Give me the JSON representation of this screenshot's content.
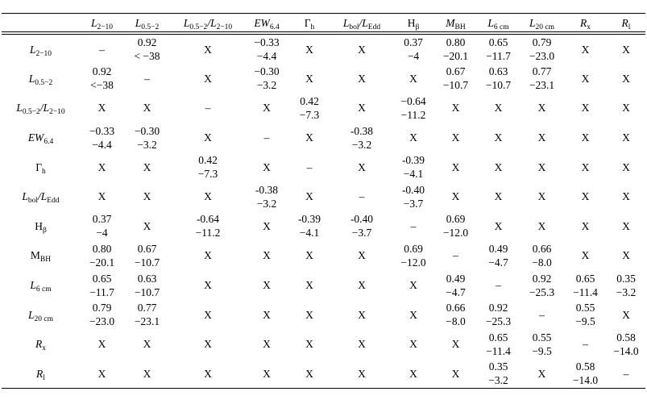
{
  "columns": [
    {
      "id": "l2_10",
      "label": "L",
      "sub": "2−10",
      "italic": true
    },
    {
      "id": "l05_2",
      "label": "L",
      "sub": "0.5−2",
      "italic": true
    },
    {
      "id": "ratio",
      "label": "L",
      "sub": "0.5−2",
      "label2": "/L",
      "sub2": "2−10",
      "italic": true
    },
    {
      "id": "ew",
      "label": "EW",
      "sub": "6.4",
      "italic": true
    },
    {
      "id": "gamma",
      "label": "Γ",
      "sub": "h",
      "italic": false
    },
    {
      "id": "lbol",
      "label": "L",
      "sub": "bol",
      "label2": "/L",
      "sub2": "Edd",
      "italic": true
    },
    {
      "id": "hbeta",
      "label": "H",
      "sub": "β",
      "italic": false
    },
    {
      "id": "mbh",
      "label": "M",
      "sub": "BH",
      "italic": true
    },
    {
      "id": "l6",
      "label": "L",
      "sub": "6 cm",
      "italic": true
    },
    {
      "id": "l20",
      "label": "L",
      "sub": "20 cm",
      "italic": true
    },
    {
      "id": "rx",
      "label": "R",
      "sub": "x",
      "italic": true
    },
    {
      "id": "rl",
      "label": "R",
      "sub": "l",
      "italic": true
    }
  ],
  "rows": [
    {
      "label": "L",
      "sub": "2−10",
      "italic": true,
      "cells": [
        [
          "–"
        ],
        [
          "0.92",
          "< −38"
        ],
        [
          "X"
        ],
        [
          "−0.33",
          "−4.4"
        ],
        [
          "X"
        ],
        [
          "X"
        ],
        [
          "0.37",
          "−4"
        ],
        [
          "0.80",
          "−20.1"
        ],
        [
          "0.65",
          "−11.7"
        ],
        [
          "0.79",
          "−23.0"
        ],
        [
          "X"
        ],
        [
          "X"
        ]
      ]
    },
    {
      "label": "L",
      "sub": "0.5−2",
      "italic": true,
      "cells": [
        [
          "0.92",
          "<−38"
        ],
        [
          "–"
        ],
        [
          "X"
        ],
        [
          "−0.30",
          "−3.2"
        ],
        [
          "X"
        ],
        [
          "X"
        ],
        [
          "X"
        ],
        [
          "0.67",
          "−10.7"
        ],
        [
          "0.63",
          "−10.7"
        ],
        [
          "0.77",
          "−23.1"
        ],
        [
          "X"
        ],
        [
          "X"
        ]
      ]
    },
    {
      "label": "L",
      "sub": "0.5−2",
      "label2": "/L",
      "sub2": "2−10",
      "italic": true,
      "cells": [
        [
          "X"
        ],
        [
          "X"
        ],
        [
          "–"
        ],
        [
          "X"
        ],
        [
          "0.42",
          "−7.3"
        ],
        [
          "X"
        ],
        [
          "−0.64",
          "−11.2"
        ],
        [
          "X"
        ],
        [
          "X"
        ],
        [
          "X"
        ],
        [
          "X"
        ],
        [
          "X"
        ]
      ]
    },
    {
      "label": "EW",
      "sub": "6.4",
      "italic": true,
      "cells": [
        [
          "−0.33",
          "−4.4"
        ],
        [
          "−0.30",
          "−3.2"
        ],
        [
          "X"
        ],
        [
          "–"
        ],
        [
          "X"
        ],
        [
          "-0.38",
          "−3.2"
        ],
        [
          "X"
        ],
        [
          "X"
        ],
        [
          "X"
        ],
        [
          "X"
        ],
        [
          "X"
        ],
        [
          "X"
        ]
      ]
    },
    {
      "label": "Γ",
      "sub": "h",
      "italic": false,
      "cells": [
        [
          "X"
        ],
        [
          "X"
        ],
        [
          "0.42",
          "−7.3"
        ],
        [
          "X"
        ],
        [
          "–"
        ],
        [
          "X"
        ],
        [
          "-0.39",
          "−4.1"
        ],
        [
          "X"
        ],
        [
          "X"
        ],
        [
          "X"
        ],
        [
          "X"
        ],
        [
          "X"
        ]
      ]
    },
    {
      "label": "L",
      "sub": "bol",
      "label2": "/L",
      "sub2": "Edd",
      "italic": true,
      "cells": [
        [
          "X"
        ],
        [
          "X"
        ],
        [
          "X"
        ],
        [
          "-0.38",
          "−3.2"
        ],
        [
          "X"
        ],
        [
          "–"
        ],
        [
          "-0.40",
          "−3.7"
        ],
        [
          "X"
        ],
        [
          "X"
        ],
        [
          "X"
        ],
        [
          "X"
        ],
        [
          "X"
        ]
      ]
    },
    {
      "label": "H",
      "sub": "β",
      "italic": false,
      "cells": [
        [
          "0.37",
          "−4"
        ],
        [
          "X"
        ],
        [
          "-0.64",
          "−11.2"
        ],
        [
          "X"
        ],
        [
          "-0.39",
          "−4.1"
        ],
        [
          "-0.40",
          "−3.7"
        ],
        [
          "–"
        ],
        [
          "0.69",
          "−12.0"
        ],
        [
          "X"
        ],
        [
          "X"
        ],
        [
          "X"
        ],
        [
          "X"
        ]
      ]
    },
    {
      "label": "M",
      "sub": "BH",
      "italic": false,
      "cells": [
        [
          "0.80",
          "−20.1"
        ],
        [
          "0.67",
          "−10.7"
        ],
        [
          "X"
        ],
        [
          "X"
        ],
        [
          "X"
        ],
        [
          "X"
        ],
        [
          "0.69",
          "−12.0"
        ],
        [
          "–"
        ],
        [
          "0.49",
          "−4.7"
        ],
        [
          "0.66",
          "−8.0"
        ],
        [
          "X"
        ],
        [
          "X"
        ]
      ]
    },
    {
      "label": "L",
      "sub": "6 cm",
      "italic": true,
      "cells": [
        [
          "0.65",
          "−11.7"
        ],
        [
          "0.63",
          "−10.7"
        ],
        [
          "X"
        ],
        [
          "X"
        ],
        [
          "X"
        ],
        [
          "X"
        ],
        [
          "X"
        ],
        [
          "0.49",
          "−4.7"
        ],
        [
          "–"
        ],
        [
          "0.92",
          "−25.3"
        ],
        [
          "0.65",
          "−11.4"
        ],
        [
          "0.35",
          "−3.2"
        ]
      ]
    },
    {
      "label": "L",
      "sub": "20 cm",
      "italic": true,
      "cells": [
        [
          "0.79",
          "−23.0"
        ],
        [
          "0.77",
          "−23.1"
        ],
        [
          "X"
        ],
        [
          "X"
        ],
        [
          "X"
        ],
        [
          "X"
        ],
        [
          "X"
        ],
        [
          "0.66",
          "−8.0"
        ],
        [
          "0.92",
          "−25.3"
        ],
        [
          "–"
        ],
        [
          "0.55",
          "−9.5"
        ],
        [
          "X"
        ]
      ]
    },
    {
      "label": "R",
      "sub": "x",
      "italic": true,
      "cells": [
        [
          "X"
        ],
        [
          "X"
        ],
        [
          "X"
        ],
        [
          "X"
        ],
        [
          "X"
        ],
        [
          "X"
        ],
        [
          "X"
        ],
        [
          "X"
        ],
        [
          "0.65",
          "−11.4"
        ],
        [
          "0.55",
          "−9.5"
        ],
        [
          "–"
        ],
        [
          "0.58",
          "−14.0"
        ]
      ]
    },
    {
      "label": "R",
      "sub": "l",
      "italic": true,
      "cells": [
        [
          "X"
        ],
        [
          "X"
        ],
        [
          "X"
        ],
        [
          "X"
        ],
        [
          "X"
        ],
        [
          "X"
        ],
        [
          "X"
        ],
        [
          "X"
        ],
        [
          "0.35",
          "−3.2"
        ],
        [
          "X"
        ],
        [
          "0.58",
          "−14.0"
        ],
        [
          "–"
        ]
      ]
    }
  ]
}
